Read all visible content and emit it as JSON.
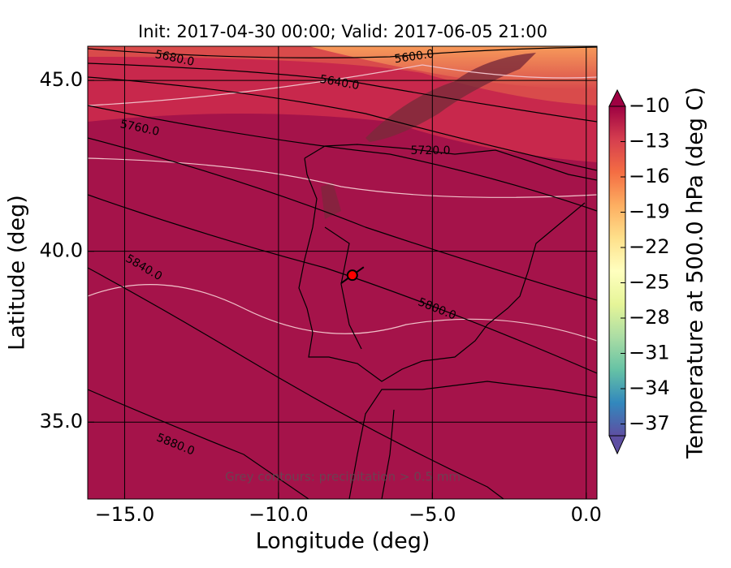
{
  "chart_data": {
    "type": "map",
    "title": "Init: 2017-04-30 00:00; Valid: 2017-06-05 21:00",
    "xlabel": "Longitude (deg)",
    "ylabel": "Latitude (deg)",
    "xlim": [
      -16.2,
      0.35
    ],
    "ylim": [
      32.75,
      46.0
    ],
    "xticks": [
      {
        "value": -15,
        "label": "−15.0"
      },
      {
        "value": -10,
        "label": "−10.0"
      },
      {
        "value": -5,
        "label": "−5.0"
      },
      {
        "value": 0,
        "label": "0.0"
      }
    ],
    "yticks": [
      {
        "value": 35,
        "label": "35.0"
      },
      {
        "value": 40,
        "label": "40.0"
      },
      {
        "value": 45,
        "label": "45.0"
      }
    ],
    "grid": true,
    "x": [
      -7.6
    ],
    "y": [
      39.3
    ],
    "marker_color": "#ff0000",
    "colorbar": {
      "label": "Temperature at 500.0 hPa (deg C)",
      "lim": [
        -38,
        -10
      ],
      "ticks": [
        {
          "value": -10,
          "label": "−10"
        },
        {
          "value": -13,
          "label": "−13"
        },
        {
          "value": -16,
          "label": "−16"
        },
        {
          "value": -19,
          "label": "−19"
        },
        {
          "value": -22,
          "label": "−22"
        },
        {
          "value": -25,
          "label": "−25"
        },
        {
          "value": -28,
          "label": "−28"
        },
        {
          "value": -31,
          "label": "−31"
        },
        {
          "value": -34,
          "label": "−34"
        },
        {
          "value": -37,
          "label": "−37"
        }
      ],
      "colors": [
        "#5e4fa2",
        "#3288bd",
        "#66c2a5",
        "#abdda4",
        "#e6f598",
        "#ffffbf",
        "#fee08b",
        "#fdae61",
        "#f46d43",
        "#d53e4f",
        "#9e0142"
      ]
    },
    "contour_labels": [
      "5600.0",
      "5640.0",
      "5680.0",
      "5720.0",
      "5760.0",
      "5800.0",
      "5840.0",
      "5880.0"
    ],
    "annotation": "Grey contours: precipitation > 0.5 mm"
  }
}
